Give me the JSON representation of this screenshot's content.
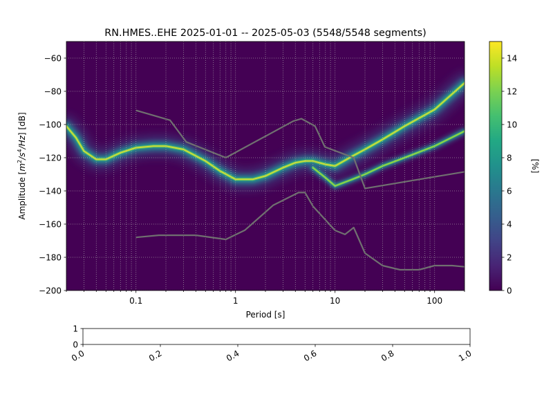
{
  "chart_data": [
    {
      "type": "heatmap",
      "title": "RN.HMES..EHE   2025-01-01 -- 2025-05-03  (5548/5548 segments)",
      "xlabel": "Period [s]",
      "ylabel_parts": [
        "Amplitude [",
        "m",
        "2",
        "/",
        "s",
        "4",
        "/",
        "Hz",
        "] [dB]"
      ],
      "xscale": "log",
      "xlim": [
        0.02,
        200
      ],
      "ylim": [
        -200,
        -50
      ],
      "xticks": [
        {
          "value": 0.1,
          "label": "0.1"
        },
        {
          "value": 1,
          "label": "1"
        },
        {
          "value": 10,
          "label": "10"
        },
        {
          "value": 100,
          "label": "100"
        }
      ],
      "yticks": [
        -60,
        -80,
        -100,
        -120,
        -140,
        -160,
        -180,
        -200
      ],
      "grid": true,
      "colorbar": {
        "label": "[%]",
        "range": [
          0,
          15
        ],
        "ticks": [
          0,
          2,
          4,
          6,
          8,
          10,
          12,
          14
        ],
        "colormap": "viridis"
      },
      "colors": {
        "background": "#440154",
        "noise_model": "#707070",
        "grid": "#b4b4b4"
      },
      "density_ridges": [
        {
          "name": "primary",
          "points": [
            [
              0.02,
              -101
            ],
            [
              0.025,
              -108
            ],
            [
              0.03,
              -116
            ],
            [
              0.04,
              -121
            ],
            [
              0.05,
              -121
            ],
            [
              0.07,
              -117
            ],
            [
              0.1,
              -114
            ],
            [
              0.15,
              -113
            ],
            [
              0.2,
              -113
            ],
            [
              0.3,
              -115
            ],
            [
              0.5,
              -122
            ],
            [
              0.7,
              -128
            ],
            [
              1,
              -133
            ],
            [
              1.5,
              -133
            ],
            [
              2,
              -131
            ],
            [
              3,
              -126
            ],
            [
              4,
              -123
            ],
            [
              5,
              -122
            ],
            [
              6,
              -122
            ],
            [
              8,
              -124
            ],
            [
              10,
              -125
            ],
            [
              15,
              -119
            ],
            [
              20,
              -115
            ],
            [
              30,
              -109
            ],
            [
              50,
              -101
            ],
            [
              100,
              -91
            ],
            [
              200,
              -75
            ]
          ]
        },
        {
          "name": "secondary",
          "points": [
            [
              6,
              -126
            ],
            [
              8,
              -132
            ],
            [
              10,
              -137
            ],
            [
              15,
              -133
            ],
            [
              20,
              -130
            ],
            [
              30,
              -125
            ],
            [
              50,
              -120
            ],
            [
              100,
              -113
            ],
            [
              200,
              -104
            ]
          ]
        }
      ],
      "noise_models": [
        {
          "name": "high",
          "points": [
            [
              0.1,
              -91.5
            ],
            [
              0.22,
              -97.4
            ],
            [
              0.32,
              -110.5
            ],
            [
              0.8,
              -120
            ],
            [
              3.8,
              -98
            ],
            [
              4.6,
              -96.5
            ],
            [
              6.3,
              -101
            ],
            [
              7.9,
              -113.5
            ],
            [
              15.4,
              -120
            ],
            [
              20,
              -138.5
            ],
            [
              200,
              -128.5
            ]
          ]
        },
        {
          "name": "low",
          "points": [
            [
              0.1,
              -168
            ],
            [
              0.17,
              -166.7
            ],
            [
              0.4,
              -166.7
            ],
            [
              0.8,
              -169.2
            ],
            [
              1.24,
              -163.7
            ],
            [
              2.4,
              -148.6
            ],
            [
              4.3,
              -141
            ],
            [
              5.0,
              -141
            ],
            [
              6.0,
              -149.2
            ],
            [
              10,
              -163.8
            ],
            [
              12.6,
              -166.2
            ],
            [
              15.4,
              -162.1
            ],
            [
              20,
              -177.5
            ],
            [
              30,
              -185
            ],
            [
              45,
              -187.5
            ],
            [
              70,
              -187.5
            ],
            [
              100,
              -185
            ],
            [
              150,
              -185
            ],
            [
              200,
              -185.7
            ]
          ]
        }
      ]
    },
    {
      "type": "line",
      "xlim": [
        0,
        1
      ],
      "ylim": [
        0,
        1
      ],
      "xticks": [
        "0.0",
        "0.2",
        "0.4",
        "0.6",
        "0.8",
        "1.0"
      ],
      "yticks": [
        "0",
        "1"
      ],
      "series": []
    }
  ]
}
